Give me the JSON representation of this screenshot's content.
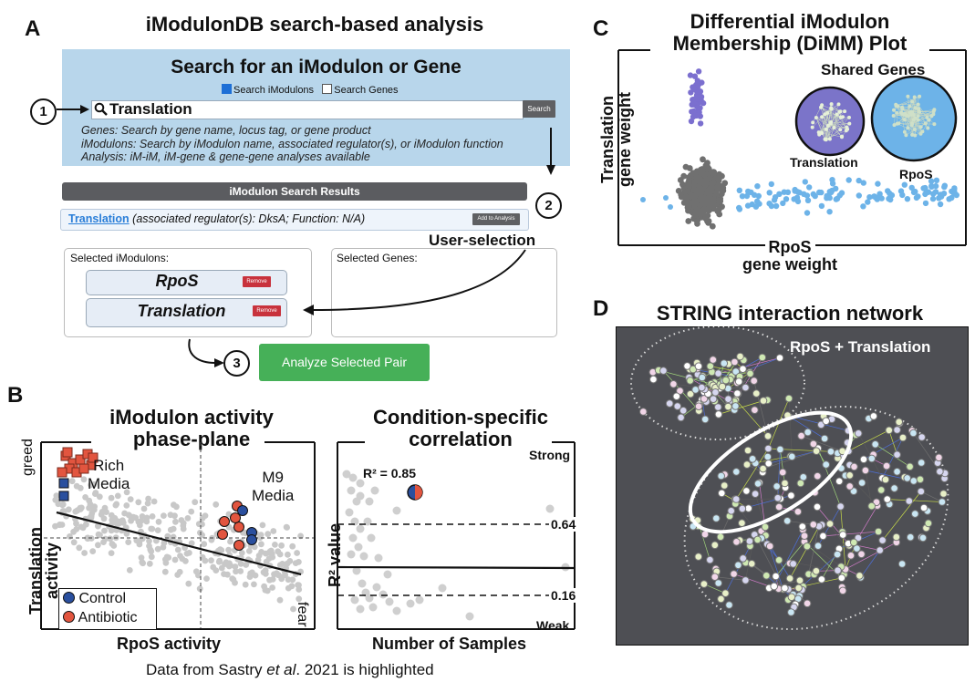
{
  "panel_a": {
    "letter": "A",
    "title": "iModulonDB search-based analysis",
    "search_heading": "Search for an iModulon or Gene",
    "check_imodulons": "Search iModulons",
    "check_genes": "Search Genes",
    "search_value": "Translation",
    "search_button": "Search",
    "help_lines": [
      "Genes: Search by gene name, locus tag, or gene product",
      "iModulons: Search by iModulon name, associated regulator(s), or iModulon function",
      "Analysis: iM-iM, iM-gene & gene-gene analyses available"
    ],
    "results_header": "iModulon Search Results",
    "result_link": "Translation",
    "result_meta": "(associated regulator(s): DksA; Function: N/A)",
    "add_button": "Add to Analysis",
    "step1": "1",
    "step2": "2",
    "step3": "3",
    "user_selection": "User-selection",
    "selected_imodulons_label": "Selected iModulons:",
    "selected_genes_label": "Selected Genes:",
    "selected_items": [
      "RpoS",
      "Translation"
    ],
    "remove_label": "Remove",
    "analyze_button": "Analyze Selected Pair",
    "icons": [
      "magnifier-icon",
      "arrow-right-icon",
      "arrow-down-icon",
      "curved-arrow-icon"
    ]
  },
  "panel_b": {
    "letter": "B",
    "left_title_1": "iModulon activity",
    "left_title_2": "phase-plane",
    "left_ylabel_1": "Translation",
    "left_ylabel_2": "activity",
    "left_xlabel": "RpoS activity",
    "greed": "greed",
    "fear": "fear",
    "rich_1": "Rich",
    "rich_2": "Media",
    "m9_1": "M9",
    "m9_2": "Media",
    "legend_control": "Control",
    "legend_antibiotic": "Antibiotic",
    "right_title_1": "Condition-specific",
    "right_title_2": "correlation",
    "right_ylabel": "R² value",
    "right_xlabel": "Number of Samples",
    "strong": "Strong",
    "weak": "Weak",
    "r2_label": "R² = 0.85",
    "line_064": "0.64",
    "line_016": "0.16",
    "caption_pre": "Data from Sastry ",
    "caption_em": "et al",
    "caption_post": ". 2021 is highlighted",
    "colors": {
      "control": "#2a4f9e",
      "antibiotic": "#e2553f",
      "gray": "#c8c8c8"
    }
  },
  "panel_c": {
    "letter": "C",
    "title_1": "Differential iModulon",
    "title_2": "Membership (DiMM) Plot",
    "ylabel_1": "Translation",
    "ylabel_2": "gene weight",
    "xlabel_1": "RpoS",
    "xlabel_2": "gene weight",
    "shared": "Shared Genes",
    "net1": "Translation",
    "net2": "RpoS",
    "colors": {
      "translation": "#7b6fcf",
      "rpos": "#6db3e8",
      "shared": "#707070"
    }
  },
  "panel_d": {
    "letter": "D",
    "title": "STRING interaction network",
    "overlay": "RpoS + Translation"
  }
}
